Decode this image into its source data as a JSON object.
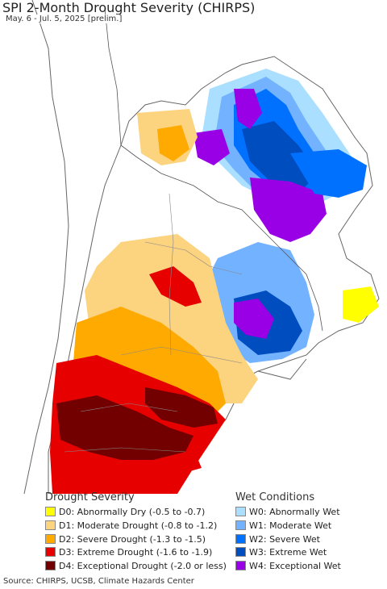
{
  "title": "SPI 2-Month Drought Severity (CHIRPS)",
  "subtitle": "May. 6 - Jul. 5, 2025 [prelim.]",
  "legend": {
    "drought_title": "Drought Severity",
    "wet_title": "Wet Conditions",
    "drought_items": [
      {
        "label": "D0: Abnormally Dry (-0.5 to -0.7)",
        "color": "#ffff00"
      },
      {
        "label": "D1: Moderate Drought (-0.8 to -1.2)",
        "color": "#fcd37f"
      },
      {
        "label": "D2: Severe Drought (-1.3 to -1.5)",
        "color": "#ffaa00"
      },
      {
        "label": "D3: Extreme Drought (-1.6 to -1.9)",
        "color": "#e60000"
      },
      {
        "label": "D4: Exceptional Drought (-2.0 or less)",
        "color": "#730000"
      }
    ],
    "wet_items": [
      {
        "label": "W0: Abnormally Wet",
        "color": "#aadfff"
      },
      {
        "label": "W1: Moderate Wet",
        "color": "#73b2ff"
      },
      {
        "label": "W2: Severe Wet",
        "color": "#0070ff"
      },
      {
        "label": "W3: Extreme Wet",
        "color": "#004dc0"
      },
      {
        "label": "W4: Exceptional Wet",
        "color": "#9900e6"
      }
    ]
  },
  "source": "Source: CHIRPS, UCSB, Climate Hazards Center"
}
